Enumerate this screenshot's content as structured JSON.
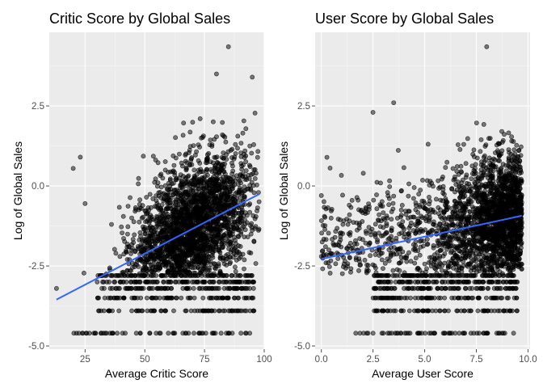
{
  "chart_data": [
    {
      "type": "scatter",
      "title": "Critic Score by Global Sales",
      "xlabel": "Average Critic Score",
      "ylabel": "Log of Global Sales",
      "xlim": [
        10,
        100
      ],
      "ylim": [
        -5.1,
        4.8
      ],
      "x_ticks": [
        25,
        50,
        75,
        100
      ],
      "x_tick_labels": [
        "25",
        "50",
        "75",
        "100"
      ],
      "y_ticks": [
        -5.0,
        -2.5,
        0.0,
        2.5
      ],
      "y_tick_labels": [
        "-5.0",
        "-2.5",
        "0.0",
        "2.5"
      ],
      "grid": true,
      "trend_line": {
        "x": [
          13,
          98
        ],
        "y": [
          -3.55,
          -0.25
        ]
      },
      "point_cloud": {
        "x_range": [
          13,
          98
        ],
        "y_floor_levels": [
          -4.6,
          -3.9,
          -3.5,
          -3.2,
          -3.0,
          -2.8
        ],
        "description_points": [
          [
            13,
            -3.2
          ],
          [
            20,
            0.55
          ],
          [
            23,
            0.9
          ],
          [
            25,
            -0.55
          ],
          [
            85,
            4.35
          ],
          [
            80,
            3.5
          ],
          [
            95,
            3.4
          ]
        ]
      }
    },
    {
      "type": "scatter",
      "title": "User Score by Global Sales",
      "xlabel": "Average User Score",
      "ylabel": "Log of Global Sales",
      "xlim": [
        -0.3,
        10.1
      ],
      "ylim": [
        -5.1,
        4.8
      ],
      "x_ticks": [
        0.0,
        2.5,
        5.0,
        7.5,
        10.0
      ],
      "x_tick_labels": [
        "0.0",
        "2.5",
        "5.0",
        "7.5",
        "10.0"
      ],
      "y_ticks": [
        -5.0,
        -2.5,
        0.0,
        2.5
      ],
      "y_tick_labels": [
        "-5.0",
        "-2.5",
        "0.0",
        "2.5"
      ],
      "grid": true,
      "trend_line": {
        "x": [
          0.0,
          9.7
        ],
        "y": [
          -2.28,
          -0.93
        ]
      },
      "point_cloud": {
        "x_range": [
          0.0,
          9.7
        ],
        "y_floor_levels": [
          -4.6,
          -3.9,
          -3.5,
          -3.2,
          -3.0,
          -2.8
        ],
        "description_points": [
          [
            0.0,
            -0.3
          ],
          [
            0.0,
            -2.2
          ],
          [
            2.5,
            2.3
          ],
          [
            8.0,
            4.35
          ],
          [
            3.5,
            2.6
          ]
        ]
      }
    }
  ],
  "colors": {
    "panel_background": "#ebebeb",
    "grid": "#ffffff",
    "points": "#000000",
    "trend_line": "#3366ff"
  }
}
